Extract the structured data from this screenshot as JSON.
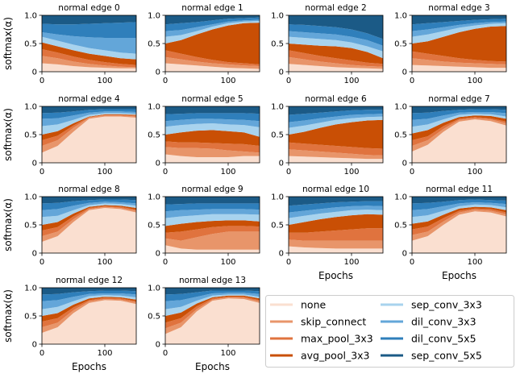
{
  "chart_data": {
    "type": "area",
    "stacked": true,
    "layout": "4x4 grid of subplots (14 used) plus legend",
    "x_range": [
      0,
      150
    ],
    "ylim": [
      0,
      1
    ],
    "x_ticks": [
      0,
      100
    ],
    "y_ticks": [
      0,
      0.5,
      1
    ],
    "x_tick_labels": [
      "0",
      "100"
    ],
    "y_tick_labels": [
      "0",
      "0.5",
      "1.0"
    ],
    "xlabel": "Epochs",
    "ylabel": "softmax(α)",
    "sample_x": [
      0,
      25,
      50,
      75,
      100,
      125,
      150
    ],
    "series_names": [
      "none",
      "skip_connect",
      "max_pool_3x3",
      "avg_pool_3x3",
      "sep_conv_3x3",
      "dil_conv_3x3",
      "dil_conv_5x5",
      "sep_conv_5x5"
    ],
    "colors": {
      "none": "#fadfd0",
      "skip_connect": "#e8956a",
      "max_pool_3x3": "#e0733e",
      "avg_pool_3x3": "#c94f05",
      "sep_conv_3x3": "#a8d3ee",
      "dil_conv_3x3": "#63a6d9",
      "dil_conv_5x5": "#2f7fbb",
      "sep_conv_5x5": "#1b5a86"
    },
    "legend": {
      "placement": "lower-right",
      "labels": [
        "none",
        "skip_connect",
        "max_pool_3x3",
        "avg_pool_3x3",
        "sep_conv_3x3",
        "dil_conv_3x3",
        "dil_conv_5x5",
        "sep_conv_5x5"
      ]
    },
    "subplots": [
      {
        "title": "normal edge 0",
        "boundaries": [
          [
            0.15,
            0.13,
            0.1,
            0.08,
            0.07,
            0.06,
            0.06
          ],
          [
            0.28,
            0.24,
            0.18,
            0.14,
            0.11,
            0.09,
            0.08
          ],
          [
            0.4,
            0.34,
            0.27,
            0.21,
            0.17,
            0.14,
            0.12
          ],
          [
            0.52,
            0.45,
            0.38,
            0.32,
            0.28,
            0.24,
            0.22
          ],
          [
            0.62,
            0.55,
            0.48,
            0.42,
            0.38,
            0.34,
            0.32
          ],
          [
            0.7,
            0.66,
            0.63,
            0.61,
            0.6,
            0.6,
            0.6
          ],
          [
            0.85,
            0.84,
            0.84,
            0.85,
            0.86,
            0.87,
            0.88
          ]
        ]
      },
      {
        "title": "normal edge 1",
        "boundaries": [
          [
            0.15,
            0.13,
            0.11,
            0.09,
            0.07,
            0.06,
            0.05
          ],
          [
            0.26,
            0.22,
            0.18,
            0.15,
            0.13,
            0.11,
            0.1
          ],
          [
            0.38,
            0.32,
            0.26,
            0.21,
            0.17,
            0.15,
            0.13
          ],
          [
            0.5,
            0.56,
            0.66,
            0.75,
            0.82,
            0.86,
            0.87
          ],
          [
            0.62,
            0.65,
            0.72,
            0.8,
            0.86,
            0.89,
            0.9
          ],
          [
            0.72,
            0.74,
            0.79,
            0.84,
            0.89,
            0.91,
            0.92
          ],
          [
            0.84,
            0.86,
            0.88,
            0.91,
            0.94,
            0.95,
            0.96
          ]
        ]
      },
      {
        "title": "normal edge 2",
        "boundaries": [
          [
            0.14,
            0.12,
            0.1,
            0.08,
            0.07,
            0.06,
            0.05
          ],
          [
            0.26,
            0.22,
            0.18,
            0.15,
            0.12,
            0.1,
            0.09
          ],
          [
            0.38,
            0.33,
            0.28,
            0.24,
            0.2,
            0.16,
            0.14
          ],
          [
            0.5,
            0.48,
            0.46,
            0.45,
            0.42,
            0.35,
            0.24
          ],
          [
            0.62,
            0.6,
            0.58,
            0.56,
            0.52,
            0.45,
            0.36
          ],
          [
            0.72,
            0.7,
            0.68,
            0.66,
            0.62,
            0.56,
            0.46
          ],
          [
            0.84,
            0.83,
            0.81,
            0.79,
            0.75,
            0.68,
            0.58
          ]
        ]
      },
      {
        "title": "normal edge 3",
        "boundaries": [
          [
            0.12,
            0.11,
            0.1,
            0.09,
            0.08,
            0.07,
            0.07
          ],
          [
            0.24,
            0.21,
            0.18,
            0.16,
            0.15,
            0.14,
            0.13
          ],
          [
            0.36,
            0.32,
            0.28,
            0.24,
            0.21,
            0.19,
            0.18
          ],
          [
            0.5,
            0.54,
            0.62,
            0.7,
            0.76,
            0.8,
            0.81
          ],
          [
            0.62,
            0.66,
            0.72,
            0.78,
            0.82,
            0.85,
            0.86
          ],
          [
            0.72,
            0.75,
            0.79,
            0.83,
            0.86,
            0.88,
            0.89
          ],
          [
            0.84,
            0.86,
            0.88,
            0.9,
            0.92,
            0.93,
            0.94
          ]
        ]
      },
      {
        "title": "normal edge 4",
        "boundaries": [
          [
            0.18,
            0.3,
            0.55,
            0.78,
            0.82,
            0.82,
            0.8
          ],
          [
            0.3,
            0.4,
            0.62,
            0.8,
            0.84,
            0.84,
            0.82
          ],
          [
            0.4,
            0.48,
            0.66,
            0.81,
            0.85,
            0.85,
            0.84
          ],
          [
            0.5,
            0.56,
            0.7,
            0.82,
            0.86,
            0.86,
            0.85
          ],
          [
            0.65,
            0.68,
            0.76,
            0.85,
            0.88,
            0.88,
            0.87
          ],
          [
            0.78,
            0.79,
            0.84,
            0.89,
            0.91,
            0.91,
            0.9
          ],
          [
            0.88,
            0.89,
            0.91,
            0.94,
            0.95,
            0.95,
            0.95
          ]
        ]
      },
      {
        "title": "normal edge 5",
        "boundaries": [
          [
            0.15,
            0.12,
            0.1,
            0.1,
            0.1,
            0.12,
            0.12
          ],
          [
            0.28,
            0.26,
            0.26,
            0.25,
            0.22,
            0.2,
            0.18
          ],
          [
            0.38,
            0.36,
            0.36,
            0.35,
            0.34,
            0.33,
            0.3
          ],
          [
            0.5,
            0.54,
            0.57,
            0.58,
            0.56,
            0.54,
            0.46
          ],
          [
            0.64,
            0.67,
            0.69,
            0.7,
            0.68,
            0.67,
            0.63
          ],
          [
            0.74,
            0.76,
            0.78,
            0.78,
            0.77,
            0.76,
            0.74
          ],
          [
            0.86,
            0.87,
            0.88,
            0.88,
            0.88,
            0.88,
            0.87
          ]
        ]
      },
      {
        "title": "normal edge 6",
        "boundaries": [
          [
            0.12,
            0.11,
            0.1,
            0.09,
            0.08,
            0.07,
            0.07
          ],
          [
            0.24,
            0.22,
            0.2,
            0.18,
            0.16,
            0.14,
            0.13
          ],
          [
            0.36,
            0.34,
            0.32,
            0.3,
            0.28,
            0.26,
            0.25
          ],
          [
            0.5,
            0.55,
            0.62,
            0.68,
            0.72,
            0.75,
            0.76
          ],
          [
            0.62,
            0.66,
            0.71,
            0.76,
            0.79,
            0.81,
            0.82
          ],
          [
            0.72,
            0.75,
            0.79,
            0.82,
            0.85,
            0.86,
            0.87
          ],
          [
            0.85,
            0.87,
            0.89,
            0.91,
            0.93,
            0.94,
            0.94
          ]
        ]
      },
      {
        "title": "normal edge 7",
        "boundaries": [
          [
            0.2,
            0.32,
            0.55,
            0.73,
            0.77,
            0.74,
            0.66
          ],
          [
            0.3,
            0.4,
            0.6,
            0.76,
            0.79,
            0.77,
            0.7
          ],
          [
            0.4,
            0.47,
            0.65,
            0.78,
            0.81,
            0.79,
            0.73
          ],
          [
            0.52,
            0.58,
            0.71,
            0.81,
            0.84,
            0.83,
            0.78
          ],
          [
            0.64,
            0.68,
            0.77,
            0.85,
            0.87,
            0.86,
            0.82
          ],
          [
            0.76,
            0.78,
            0.84,
            0.89,
            0.9,
            0.9,
            0.88
          ],
          [
            0.88,
            0.89,
            0.92,
            0.94,
            0.95,
            0.95,
            0.94
          ]
        ]
      },
      {
        "title": "normal edge 8",
        "boundaries": [
          [
            0.2,
            0.3,
            0.55,
            0.76,
            0.8,
            0.78,
            0.72
          ],
          [
            0.3,
            0.38,
            0.6,
            0.78,
            0.82,
            0.8,
            0.75
          ],
          [
            0.4,
            0.46,
            0.65,
            0.8,
            0.83,
            0.82,
            0.77
          ],
          [
            0.5,
            0.55,
            0.7,
            0.82,
            0.85,
            0.84,
            0.8
          ],
          [
            0.64,
            0.66,
            0.76,
            0.85,
            0.88,
            0.87,
            0.84
          ],
          [
            0.76,
            0.78,
            0.84,
            0.89,
            0.91,
            0.9,
            0.88
          ],
          [
            0.88,
            0.89,
            0.92,
            0.94,
            0.95,
            0.95,
            0.94
          ]
        ]
      },
      {
        "title": "normal edge 9",
        "boundaries": [
          [
            0.14,
            0.08,
            0.06,
            0.06,
            0.06,
            0.06,
            0.06
          ],
          [
            0.26,
            0.22,
            0.28,
            0.34,
            0.38,
            0.38,
            0.38
          ],
          [
            0.36,
            0.38,
            0.42,
            0.46,
            0.48,
            0.48,
            0.47
          ],
          [
            0.48,
            0.52,
            0.55,
            0.57,
            0.58,
            0.58,
            0.56
          ],
          [
            0.62,
            0.65,
            0.67,
            0.69,
            0.69,
            0.69,
            0.68
          ],
          [
            0.74,
            0.76,
            0.77,
            0.78,
            0.78,
            0.78,
            0.77
          ],
          [
            0.86,
            0.87,
            0.88,
            0.88,
            0.88,
            0.88,
            0.88
          ]
        ]
      },
      {
        "title": "normal edge 10",
        "boundaries": [
          [
            0.12,
            0.1,
            0.09,
            0.08,
            0.08,
            0.08,
            0.08
          ],
          [
            0.24,
            0.22,
            0.22,
            0.22,
            0.22,
            0.22,
            0.22
          ],
          [
            0.36,
            0.36,
            0.38,
            0.4,
            0.42,
            0.44,
            0.44
          ],
          [
            0.5,
            0.55,
            0.6,
            0.64,
            0.67,
            0.69,
            0.68
          ],
          [
            0.62,
            0.66,
            0.7,
            0.73,
            0.76,
            0.77,
            0.76
          ],
          [
            0.72,
            0.75,
            0.78,
            0.81,
            0.83,
            0.84,
            0.83
          ],
          [
            0.84,
            0.86,
            0.88,
            0.9,
            0.91,
            0.92,
            0.92
          ]
        ]
      },
      {
        "title": "normal edge 11",
        "boundaries": [
          [
            0.22,
            0.3,
            0.5,
            0.68,
            0.74,
            0.72,
            0.65
          ],
          [
            0.32,
            0.38,
            0.56,
            0.72,
            0.77,
            0.75,
            0.69
          ],
          [
            0.42,
            0.47,
            0.62,
            0.75,
            0.79,
            0.78,
            0.72
          ],
          [
            0.52,
            0.56,
            0.68,
            0.79,
            0.82,
            0.81,
            0.76
          ],
          [
            0.64,
            0.67,
            0.75,
            0.83,
            0.86,
            0.85,
            0.81
          ],
          [
            0.76,
            0.78,
            0.83,
            0.88,
            0.9,
            0.89,
            0.87
          ],
          [
            0.88,
            0.89,
            0.91,
            0.94,
            0.95,
            0.94,
            0.93
          ]
        ]
      },
      {
        "title": "normal edge 12",
        "boundaries": [
          [
            0.2,
            0.3,
            0.55,
            0.73,
            0.78,
            0.77,
            0.71
          ],
          [
            0.3,
            0.38,
            0.6,
            0.76,
            0.8,
            0.79,
            0.74
          ],
          [
            0.4,
            0.46,
            0.65,
            0.78,
            0.82,
            0.81,
            0.76
          ],
          [
            0.5,
            0.55,
            0.7,
            0.81,
            0.84,
            0.83,
            0.79
          ],
          [
            0.62,
            0.66,
            0.76,
            0.85,
            0.87,
            0.86,
            0.83
          ],
          [
            0.76,
            0.78,
            0.84,
            0.89,
            0.9,
            0.9,
            0.88
          ],
          [
            0.88,
            0.89,
            0.92,
            0.94,
            0.95,
            0.95,
            0.94
          ]
        ]
      },
      {
        "title": "normal edge 13",
        "boundaries": [
          [
            0.18,
            0.3,
            0.58,
            0.77,
            0.81,
            0.8,
            0.73
          ],
          [
            0.28,
            0.38,
            0.62,
            0.79,
            0.83,
            0.82,
            0.76
          ],
          [
            0.38,
            0.46,
            0.67,
            0.81,
            0.84,
            0.84,
            0.78
          ],
          [
            0.5,
            0.56,
            0.72,
            0.83,
            0.86,
            0.86,
            0.81
          ],
          [
            0.62,
            0.66,
            0.77,
            0.86,
            0.88,
            0.88,
            0.84
          ],
          [
            0.76,
            0.78,
            0.84,
            0.9,
            0.91,
            0.91,
            0.89
          ],
          [
            0.88,
            0.89,
            0.92,
            0.95,
            0.95,
            0.95,
            0.94
          ]
        ]
      }
    ]
  }
}
